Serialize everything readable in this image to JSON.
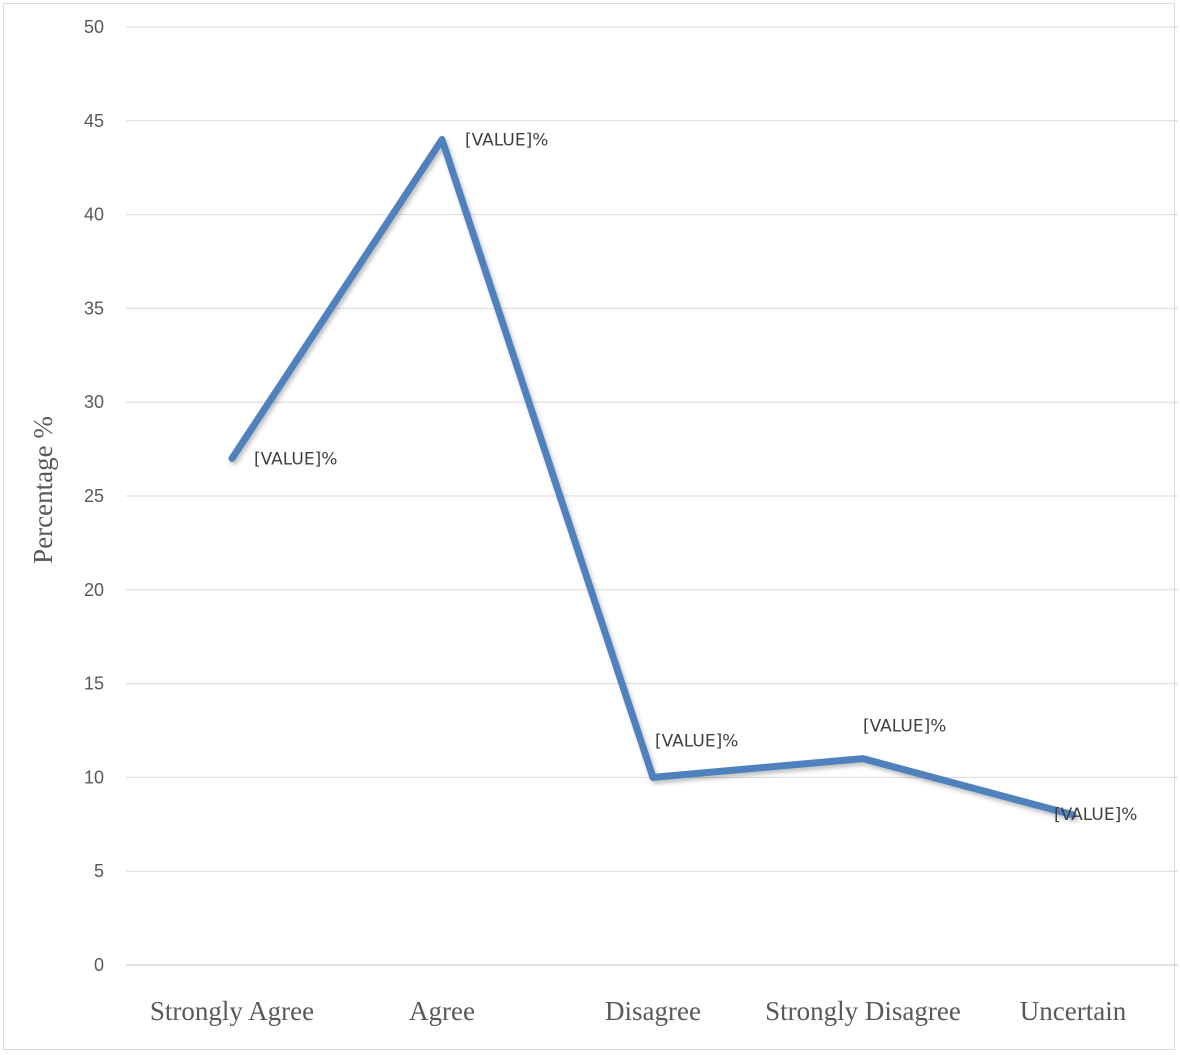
{
  "chart_data": {
    "type": "line",
    "categories": [
      "Strongly Agree",
      "Agree",
      "Disagree",
      "Strongly Disagree",
      "Uncertain"
    ],
    "series": [
      {
        "values": [
          27,
          44,
          10,
          11,
          8
        ]
      }
    ],
    "data_labels": [
      "[VALUE]%",
      "[VALUE]%",
      "[VALUE]%",
      "[VALUE]%",
      "[VALUE]%"
    ],
    "ylabel": "Percentage %",
    "xlabel": "",
    "ylim": [
      0,
      50
    ],
    "yticks": [
      0,
      5,
      10,
      15,
      20,
      25,
      30,
      35,
      40,
      45,
      50
    ],
    "grid": true,
    "legend": false,
    "line_color": "#4f81bd",
    "grid_color": "#d9d9d9"
  }
}
